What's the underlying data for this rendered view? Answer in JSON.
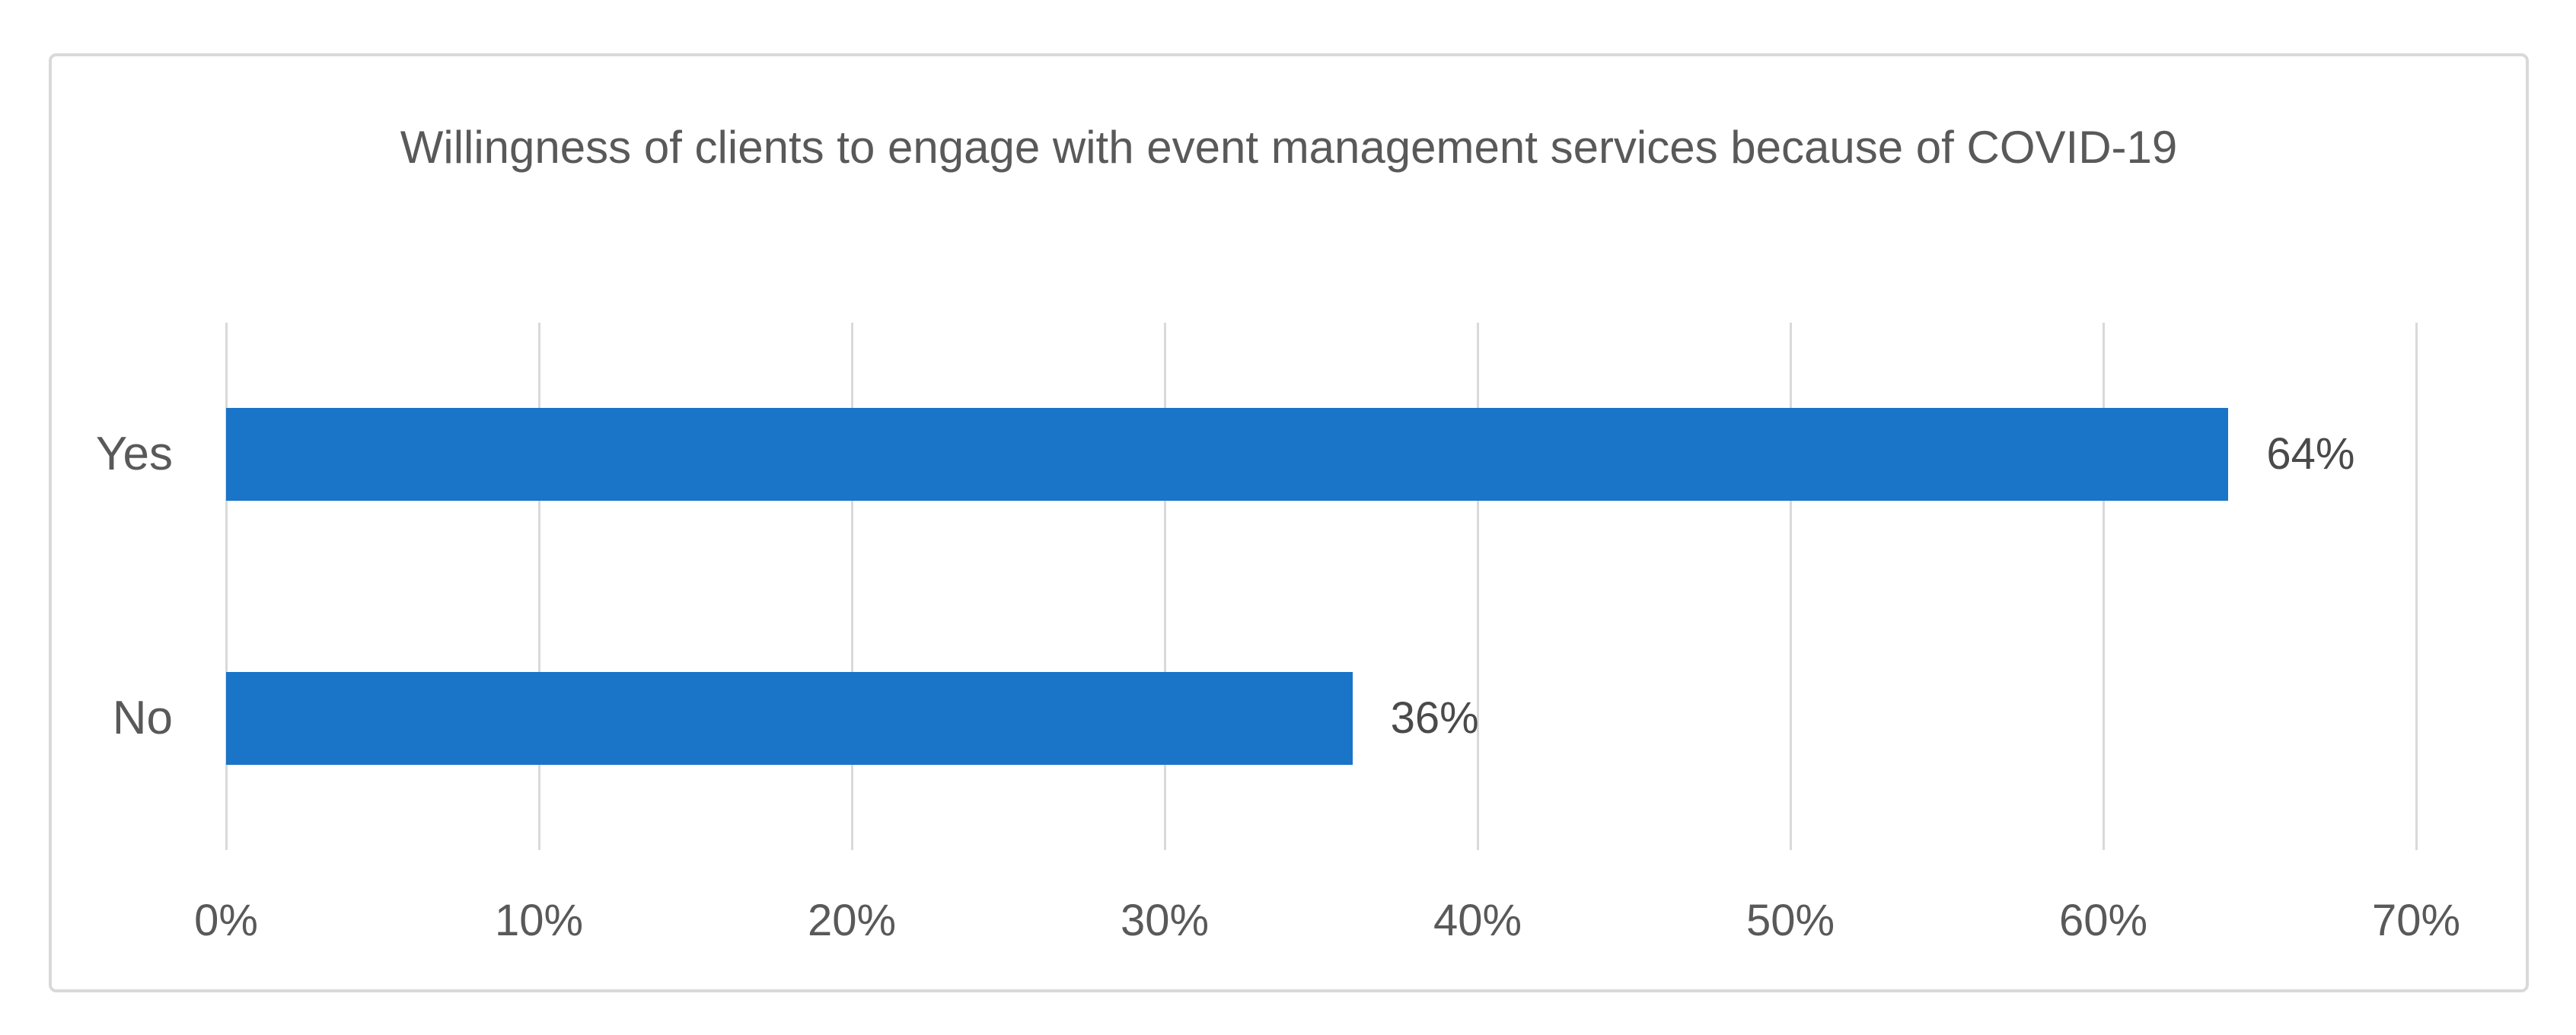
{
  "chart_data": {
    "type": "bar",
    "orientation": "horizontal",
    "title": "Willingness of clients to engage with event management services because of COVID-19",
    "categories": [
      "Yes",
      "No"
    ],
    "values": [
      64,
      36
    ],
    "data_labels": [
      "64%",
      "36%"
    ],
    "xlabel": "",
    "ylabel": "",
    "xlim": [
      0,
      70
    ],
    "x_tick_values": [
      0,
      10,
      20,
      30,
      40,
      50,
      60,
      70
    ],
    "x_tick_labels": [
      "0%",
      "10%",
      "20%",
      "30%",
      "40%",
      "50%",
      "60%",
      "70%"
    ],
    "grid": true,
    "legend": false,
    "colors": {
      "bar": "#1A74C8",
      "grid": "#D9D9D9",
      "frame_border": "#D9D9D9",
      "background": "#FFFFFF",
      "title_text": "#595959",
      "axis_text": "#595959",
      "data_label_text": "#4A4A4A"
    }
  }
}
